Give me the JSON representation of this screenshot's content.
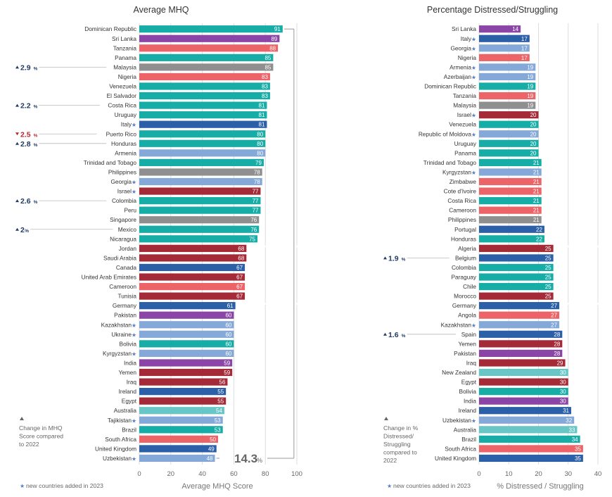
{
  "colors": {
    "teal": "#17ada7",
    "purple": "#8a45a6",
    "salmon": "#ec6467",
    "gray": "#8f8f8f",
    "red": "#a52a38",
    "navy": "#2b5fa8",
    "lightblue": "#84a8d8",
    "lightteal": "#69c6c6",
    "gridline": "#dddddd",
    "change_up": "#1f3a66",
    "change_down": "#b8262f"
  },
  "new_country_legend": "new countries added in 2023",
  "chart_data": [
    {
      "type": "bar",
      "orientation": "horizontal",
      "title": "Average MHQ",
      "xlabel": "Average MHQ Score",
      "xlim": [
        0,
        100
      ],
      "xticks": [
        "0",
        "20",
        "40",
        "60",
        "80",
        "100"
      ],
      "grid": true,
      "change_note": "Change in MHQ Score compared to 2022",
      "range_annotation": {
        "value": "14.3",
        "unit": "%"
      },
      "bars": [
        {
          "country": "Dominican Republic",
          "value": 91,
          "color": "teal"
        },
        {
          "country": "Sri Lanka",
          "value": 89,
          "color": "purple"
        },
        {
          "country": "Tanzania",
          "value": 88,
          "color": "salmon"
        },
        {
          "country": "Panama",
          "value": 85,
          "color": "teal"
        },
        {
          "country": "Malaysia",
          "value": 85,
          "color": "gray",
          "change": "2.9",
          "direction": "up"
        },
        {
          "country": "Nigeria",
          "value": 83,
          "color": "salmon"
        },
        {
          "country": "Venezuela",
          "value": 83,
          "color": "teal"
        },
        {
          "country": "El Salvador",
          "value": 83,
          "color": "teal"
        },
        {
          "country": "Costa Rica",
          "value": 81,
          "color": "teal",
          "change": "2.2",
          "direction": "up"
        },
        {
          "country": "Uruguay",
          "value": 81,
          "color": "teal"
        },
        {
          "country": "Italy",
          "value": 81,
          "color": "navy",
          "new": true
        },
        {
          "country": "Puerto Rico",
          "value": 80,
          "color": "teal",
          "change": "2.5",
          "direction": "down"
        },
        {
          "country": "Honduras",
          "value": 80,
          "color": "teal",
          "change": "2.8",
          "direction": "up"
        },
        {
          "country": "Armenia",
          "value": 80,
          "color": "lightblue"
        },
        {
          "country": "Trinidad and Tobago",
          "value": 79,
          "color": "teal"
        },
        {
          "country": "Philippines",
          "value": 78,
          "color": "gray"
        },
        {
          "country": "Georgia",
          "value": 78,
          "color": "lightblue",
          "new": true
        },
        {
          "country": "Israel",
          "value": 77,
          "color": "red",
          "new": true
        },
        {
          "country": "Colombia",
          "value": 77,
          "color": "teal",
          "change": "2.6",
          "direction": "up"
        },
        {
          "country": "Peru",
          "value": 77,
          "color": "teal"
        },
        {
          "country": "Singapore",
          "value": 76,
          "color": "gray"
        },
        {
          "country": "Mexico",
          "value": 76,
          "color": "teal",
          "change": "2",
          "direction": "up"
        },
        {
          "country": "Nicaragua",
          "value": 75,
          "color": "teal"
        },
        {
          "country": "Jordan",
          "value": 68,
          "color": "red"
        },
        {
          "country": "Saudi Arabia",
          "value": 68,
          "color": "red"
        },
        {
          "country": "Canada",
          "value": 67,
          "color": "navy"
        },
        {
          "country": "United Arab Emirates",
          "value": 67,
          "color": "red"
        },
        {
          "country": "Cameroon",
          "value": 67,
          "color": "salmon"
        },
        {
          "country": "Tunisia",
          "value": 67,
          "color": "red"
        },
        {
          "country": "Germany",
          "value": 61,
          "color": "navy"
        },
        {
          "country": "Pakistan",
          "value": 60,
          "color": "purple"
        },
        {
          "country": "Kazakhstan",
          "value": 60,
          "color": "lightblue",
          "new": true
        },
        {
          "country": "Ukraine",
          "value": 60,
          "color": "lightblue",
          "new": true
        },
        {
          "country": "Bolivia",
          "value": 60,
          "color": "teal"
        },
        {
          "country": "Kyrgyzstan",
          "value": 60,
          "color": "lightblue",
          "new": true
        },
        {
          "country": "India",
          "value": 59,
          "color": "purple"
        },
        {
          "country": "Yemen",
          "value": 59,
          "color": "red"
        },
        {
          "country": "Iraq",
          "value": 56,
          "color": "red"
        },
        {
          "country": "Ireland",
          "value": 55,
          "color": "navy"
        },
        {
          "country": "Egypt",
          "value": 55,
          "color": "red"
        },
        {
          "country": "Australia",
          "value": 54,
          "color": "lightteal"
        },
        {
          "country": "Tajikistan",
          "value": 53,
          "color": "lightblue",
          "new": true
        },
        {
          "country": "Brazil",
          "value": 53,
          "color": "teal"
        },
        {
          "country": "South Africa",
          "value": 50,
          "color": "salmon"
        },
        {
          "country": "United Kingdom",
          "value": 49,
          "color": "navy"
        },
        {
          "country": "Uzbekistan",
          "value": 48,
          "color": "lightblue",
          "new": true
        }
      ]
    },
    {
      "type": "bar",
      "orientation": "horizontal",
      "title": "Percentage Distressed/Struggling",
      "xlabel": "% Distressed / Struggling",
      "xlim": [
        0,
        40
      ],
      "xticks": [
        "0",
        "10",
        "20",
        "30",
        "40"
      ],
      "grid": true,
      "change_note": "Change in % Distressed/ Struggling compared to 2022",
      "bars": [
        {
          "country": "Sri Lanka",
          "value": 14,
          "color": "purple"
        },
        {
          "country": "Italy",
          "value": 17,
          "color": "navy",
          "new": true
        },
        {
          "country": "Georgia",
          "value": 17,
          "color": "lightblue",
          "new": true
        },
        {
          "country": "Nigeria",
          "value": 17,
          "color": "salmon"
        },
        {
          "country": "Armenia",
          "value": 19,
          "color": "lightblue",
          "new": true
        },
        {
          "country": "Azerbaijan",
          "value": 19,
          "color": "lightblue",
          "new": true
        },
        {
          "country": "Dominican Republic",
          "value": 19,
          "color": "teal"
        },
        {
          "country": "Tanzania",
          "value": 19,
          "color": "salmon"
        },
        {
          "country": "Malaysia",
          "value": 19,
          "color": "gray"
        },
        {
          "country": "Israel",
          "value": 20,
          "color": "red",
          "new": true
        },
        {
          "country": "Venezuela",
          "value": 20,
          "color": "teal"
        },
        {
          "country": "Republic of Moldova",
          "value": 20,
          "color": "lightblue",
          "new": true
        },
        {
          "country": "Uruguay",
          "value": 20,
          "color": "teal"
        },
        {
          "country": "Panama",
          "value": 20,
          "color": "teal"
        },
        {
          "country": "Trinidad and Tobago",
          "value": 21,
          "color": "teal"
        },
        {
          "country": "Kyrgyzstan",
          "value": 21,
          "color": "lightblue",
          "new": true
        },
        {
          "country": "Zimbabwe",
          "value": 21,
          "color": "salmon"
        },
        {
          "country": "Cote d'Ivoire",
          "value": 21,
          "color": "salmon"
        },
        {
          "country": "Costa Rica",
          "value": 21,
          "color": "teal"
        },
        {
          "country": "Cameroon",
          "value": 21,
          "color": "salmon"
        },
        {
          "country": "Philippines",
          "value": 21,
          "color": "gray"
        },
        {
          "country": "Portugal",
          "value": 22,
          "color": "navy"
        },
        {
          "country": "Honduras",
          "value": 22,
          "color": "teal"
        },
        {
          "country": "Algeria",
          "value": 25,
          "color": "red"
        },
        {
          "country": "Belgium",
          "value": 25,
          "color": "navy",
          "change": "1.9",
          "direction": "up"
        },
        {
          "country": "Colombia",
          "value": 25,
          "color": "teal"
        },
        {
          "country": "Paraguay",
          "value": 25,
          "color": "teal"
        },
        {
          "country": "Chile",
          "value": 25,
          "color": "teal"
        },
        {
          "country": "Morocco",
          "value": 25,
          "color": "red"
        },
        {
          "country": "Germany",
          "value": 27,
          "color": "navy"
        },
        {
          "country": "Angola",
          "value": 27,
          "color": "salmon"
        },
        {
          "country": "Kazakhstan",
          "value": 27,
          "color": "lightblue",
          "new": true
        },
        {
          "country": "Spain",
          "value": 28,
          "color": "navy",
          "change": "1.6",
          "direction": "up"
        },
        {
          "country": "Yemen",
          "value": 28,
          "color": "red"
        },
        {
          "country": "Pakistan",
          "value": 28,
          "color": "purple"
        },
        {
          "country": "Iraq",
          "value": 29,
          "color": "red"
        },
        {
          "country": "New Zealand",
          "value": 30,
          "color": "lightteal"
        },
        {
          "country": "Egypt",
          "value": 30,
          "color": "red"
        },
        {
          "country": "Bolivia",
          "value": 30,
          "color": "teal"
        },
        {
          "country": "India",
          "value": 30,
          "color": "purple"
        },
        {
          "country": "Ireland",
          "value": 31,
          "color": "navy"
        },
        {
          "country": "Uzbekistan",
          "value": 32,
          "color": "lightblue",
          "new": true
        },
        {
          "country": "Australia",
          "value": 33,
          "color": "lightteal"
        },
        {
          "country": "Brazil",
          "value": 34,
          "color": "teal"
        },
        {
          "country": "South Africa",
          "value": 35,
          "color": "salmon"
        },
        {
          "country": "United Kingdom",
          "value": 35,
          "color": "navy"
        }
      ]
    }
  ]
}
